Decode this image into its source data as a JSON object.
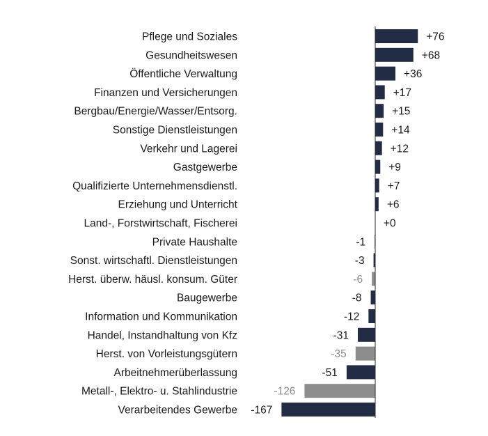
{
  "chart_data": {
    "type": "bar",
    "orientation": "horizontal",
    "title": "",
    "xlabel": "",
    "ylabel": "",
    "xlim": [
      -167,
      76
    ],
    "grid": false,
    "legend": "none",
    "colors": {
      "dark": "#232c45",
      "gray": "#8c8c8c",
      "axis": "#2b2b2b"
    },
    "categories": [
      "Pflege und Soziales",
      "Gesundheitswesen",
      "Öffentliche Verwaltung",
      "Finanzen und Versicherungen",
      "Bergbau/Energie/Wasser/Entsorg.",
      "Sonstige Dienstleistungen",
      "Verkehr und Lagerei",
      "Gastgewerbe",
      "Qualifizierte Unternehmensdienstl.",
      "Erziehung und Unterricht",
      "Land-, Forstwirtschaft, Fischerei",
      "Private Haushalte",
      "Sonst. wirtschaftl. Dienstleistungen",
      "Herst. überw. häusl. konsum. Güter",
      "Baugewerbe",
      "Information und Kommunikation",
      "Handel, Instandhaltung von Kfz",
      "Herst. von Vorleistungsgütern",
      "Arbeitnehmerüberlassung",
      "Metall-, Elektro- u. Stahlindustrie",
      "Verarbeitendes Gewerbe"
    ],
    "values": [
      76,
      68,
      36,
      17,
      15,
      14,
      12,
      9,
      7,
      6,
      0,
      -1,
      -3,
      -6,
      -8,
      -12,
      -31,
      -35,
      -51,
      -126,
      -167
    ],
    "value_labels": [
      "+76",
      "+68",
      "+36",
      "+17",
      "+15",
      "+14",
      "+12",
      "+9",
      "+7",
      "+6",
      "+0",
      "-1",
      "-3",
      "-6",
      "-8",
      "-12",
      "-31",
      "-35",
      "-51",
      "-126",
      "-167"
    ],
    "bar_color_keys": [
      "dark",
      "dark",
      "dark",
      "dark",
      "dark",
      "dark",
      "dark",
      "dark",
      "dark",
      "dark",
      "dark",
      "dark",
      "dark",
      "gray",
      "dark",
      "dark",
      "dark",
      "gray",
      "dark",
      "gray",
      "dark"
    ]
  }
}
